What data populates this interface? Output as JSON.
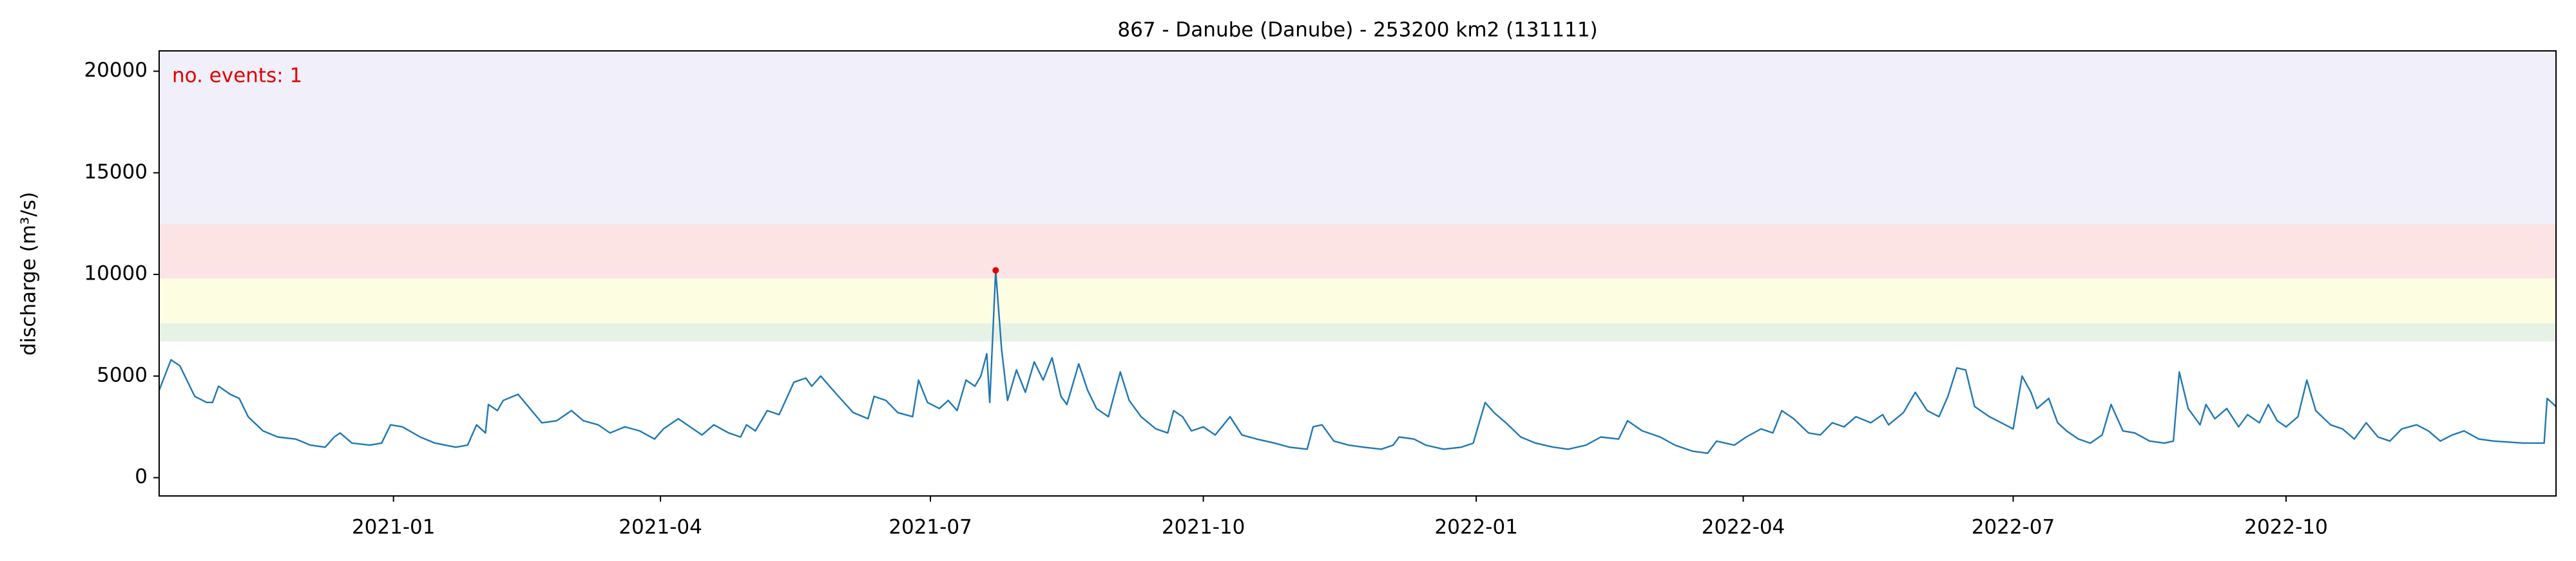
{
  "chart_data": {
    "type": "line",
    "title": "867 - Danube (Danube) - 253200 km2 (131111)",
    "y_label": "discharge (m³/s)",
    "annotation": "no. events: 1",
    "annotation_color": "#e00000",
    "xlim": [
      "2020-10-14",
      "2022-12-31"
    ],
    "ylim": [
      -900,
      21000
    ],
    "xticks": [
      {
        "value": "2021-01-01",
        "label": "2021-01"
      },
      {
        "value": "2021-04-01",
        "label": "2021-04"
      },
      {
        "value": "2021-07-01",
        "label": "2021-07"
      },
      {
        "value": "2021-10-01",
        "label": "2021-10"
      },
      {
        "value": "2022-01-01",
        "label": "2022-01"
      },
      {
        "value": "2022-04-01",
        "label": "2022-04"
      },
      {
        "value": "2022-07-01",
        "label": "2022-07"
      },
      {
        "value": "2022-10-01",
        "label": "2022-10"
      }
    ],
    "yticks": [
      0,
      5000,
      10000,
      15000,
      20000
    ],
    "grid": false,
    "bands": [
      {
        "from": 6700,
        "to": 7600,
        "color": "#e5f2e5"
      },
      {
        "from": 7600,
        "to": 9800,
        "color": "#fdfde2"
      },
      {
        "from": 9800,
        "to": 12500,
        "color": "#fde4e4"
      },
      {
        "from": 12500,
        "to": 21000,
        "color": "#f1eff9"
      }
    ],
    "x": [
      "2020-10-14",
      "2020-10-18",
      "2020-10-21",
      "2020-10-26",
      "2020-10-30",
      "2020-11-01",
      "2020-11-03",
      "2020-11-07",
      "2020-11-10",
      "2020-11-13",
      "2020-11-18",
      "2020-11-23",
      "2020-11-29",
      "2020-12-04",
      "2020-12-09",
      "2020-12-12",
      "2020-12-14",
      "2020-12-18",
      "2020-12-24",
      "2020-12-28",
      "2020-12-31",
      "2021-01-04",
      "2021-01-10",
      "2021-01-15",
      "2021-01-22",
      "2021-01-26",
      "2021-01-29",
      "2021-02-01",
      "2021-02-02",
      "2021-02-05",
      "2021-02-07",
      "2021-02-12",
      "2021-02-16",
      "2021-02-20",
      "2021-02-25",
      "2021-03-02",
      "2021-03-06",
      "2021-03-11",
      "2021-03-15",
      "2021-03-20",
      "2021-03-25",
      "2021-03-30",
      "2021-04-02",
      "2021-04-07",
      "2021-04-11",
      "2021-04-15",
      "2021-04-19",
      "2021-04-24",
      "2021-04-28",
      "2021-04-30",
      "2021-05-03",
      "2021-05-07",
      "2021-05-11",
      "2021-05-16",
      "2021-05-20",
      "2021-05-22",
      "2021-05-25",
      "2021-05-31",
      "2021-06-05",
      "2021-06-10",
      "2021-06-12",
      "2021-06-16",
      "2021-06-20",
      "2021-06-25",
      "2021-06-27",
      "2021-06-30",
      "2021-07-04",
      "2021-07-07",
      "2021-07-10",
      "2021-07-13",
      "2021-07-16",
      "2021-07-18",
      "2021-07-20",
      "2021-07-21",
      "2021-07-23",
      "2021-07-25",
      "2021-07-27",
      "2021-07-30",
      "2021-08-02",
      "2021-08-05",
      "2021-08-08",
      "2021-08-11",
      "2021-08-14",
      "2021-08-16",
      "2021-08-20",
      "2021-08-23",
      "2021-08-26",
      "2021-08-30",
      "2021-09-03",
      "2021-09-06",
      "2021-09-10",
      "2021-09-15",
      "2021-09-19",
      "2021-09-21",
      "2021-09-24",
      "2021-09-27",
      "2021-10-01",
      "2021-10-05",
      "2021-10-10",
      "2021-10-14",
      "2021-10-19",
      "2021-10-25",
      "2021-10-30",
      "2021-11-05",
      "2021-11-07",
      "2021-11-10",
      "2021-11-14",
      "2021-11-19",
      "2021-11-24",
      "2021-11-30",
      "2021-12-04",
      "2021-12-06",
      "2021-12-11",
      "2021-12-15",
      "2021-12-21",
      "2021-12-27",
      "2021-12-31",
      "2022-01-04",
      "2022-01-07",
      "2022-01-11",
      "2022-01-16",
      "2022-01-21",
      "2022-01-27",
      "2022-02-01",
      "2022-02-07",
      "2022-02-12",
      "2022-02-18",
      "2022-02-21",
      "2022-02-26",
      "2022-03-04",
      "2022-03-09",
      "2022-03-15",
      "2022-03-20",
      "2022-03-23",
      "2022-03-29",
      "2022-04-02",
      "2022-04-07",
      "2022-04-11",
      "2022-04-14",
      "2022-04-18",
      "2022-04-23",
      "2022-04-27",
      "2022-05-01",
      "2022-05-05",
      "2022-05-09",
      "2022-05-14",
      "2022-05-18",
      "2022-05-20",
      "2022-05-25",
      "2022-05-29",
      "2022-06-02",
      "2022-06-06",
      "2022-06-09",
      "2022-06-12",
      "2022-06-15",
      "2022-06-18",
      "2022-06-23",
      "2022-06-27",
      "2022-07-01",
      "2022-07-04",
      "2022-07-07",
      "2022-07-09",
      "2022-07-13",
      "2022-07-16",
      "2022-07-19",
      "2022-07-23",
      "2022-07-27",
      "2022-07-31",
      "2022-08-03",
      "2022-08-07",
      "2022-08-11",
      "2022-08-16",
      "2022-08-21",
      "2022-08-24",
      "2022-08-26",
      "2022-08-29",
      "2022-09-02",
      "2022-09-04",
      "2022-09-07",
      "2022-09-11",
      "2022-09-15",
      "2022-09-18",
      "2022-09-22",
      "2022-09-25",
      "2022-09-28",
      "2022-10-01",
      "2022-10-05",
      "2022-10-08",
      "2022-10-11",
      "2022-10-16",
      "2022-10-20",
      "2022-10-24",
      "2022-10-28",
      "2022-11-01",
      "2022-11-05",
      "2022-11-09",
      "2022-11-14",
      "2022-11-18",
      "2022-11-22",
      "2022-11-26",
      "2022-11-30",
      "2022-12-05",
      "2022-12-10",
      "2022-12-20",
      "2022-12-27",
      "2022-12-28",
      "2022-12-31"
    ],
    "series": [
      {
        "color": "#1f77b4",
        "values": [
          4300,
          5800,
          5500,
          4000,
          3700,
          3700,
          4500,
          4100,
          3900,
          3000,
          2300,
          2000,
          1900,
          1600,
          1500,
          2000,
          2200,
          1700,
          1600,
          1700,
          2600,
          2500,
          2000,
          1700,
          1500,
          1600,
          2600,
          2200,
          3600,
          3300,
          3800,
          4100,
          3400,
          2700,
          2800,
          3300,
          2800,
          2600,
          2200,
          2500,
          2300,
          1900,
          2400,
          2900,
          2500,
          2100,
          2600,
          2200,
          2000,
          2600,
          2300,
          3300,
          3100,
          4700,
          4900,
          4500,
          5000,
          4000,
          3200,
          2900,
          4000,
          3800,
          3200,
          3000,
          4800,
          3700,
          3400,
          3800,
          3300,
          4800,
          4500,
          5000,
          6100,
          3700,
          10200,
          6300,
          3800,
          5300,
          4200,
          5700,
          4800,
          5900,
          4000,
          3600,
          5600,
          4300,
          3400,
          3000,
          5200,
          3800,
          3000,
          2400,
          2200,
          3300,
          3000,
          2300,
          2500,
          2100,
          3000,
          2100,
          1900,
          1700,
          1500,
          1400,
          2500,
          2600,
          1800,
          1600,
          1500,
          1400,
          1600,
          2000,
          1900,
          1600,
          1400,
          1500,
          1700,
          3700,
          3200,
          2700,
          2000,
          1700,
          1500,
          1400,
          1600,
          2000,
          1900,
          2800,
          2300,
          2000,
          1600,
          1300,
          1200,
          1800,
          1600,
          2000,
          2400,
          2200,
          3300,
          2900,
          2200,
          2100,
          2700,
          2500,
          3000,
          2700,
          3100,
          2600,
          3200,
          4200,
          3300,
          3000,
          4000,
          5400,
          5300,
          3500,
          3000,
          2700,
          2400,
          5000,
          4200,
          3400,
          3900,
          2700,
          2300,
          1900,
          1700,
          2100,
          3600,
          2300,
          2200,
          1800,
          1700,
          1800,
          5200,
          3400,
          2600,
          3600,
          2900,
          3400,
          2500,
          3100,
          2700,
          3600,
          2800,
          2500,
          3000,
          4800,
          3300,
          2600,
          2400,
          1900,
          2700,
          2000,
          1800,
          2400,
          2600,
          2300,
          1800,
          2100,
          2300,
          1900,
          1800,
          1700,
          1700,
          3900,
          3500
        ]
      }
    ],
    "events": {
      "x": [
        "2021-07-23"
      ],
      "values": [
        10200
      ],
      "color": "#e00000"
    }
  }
}
